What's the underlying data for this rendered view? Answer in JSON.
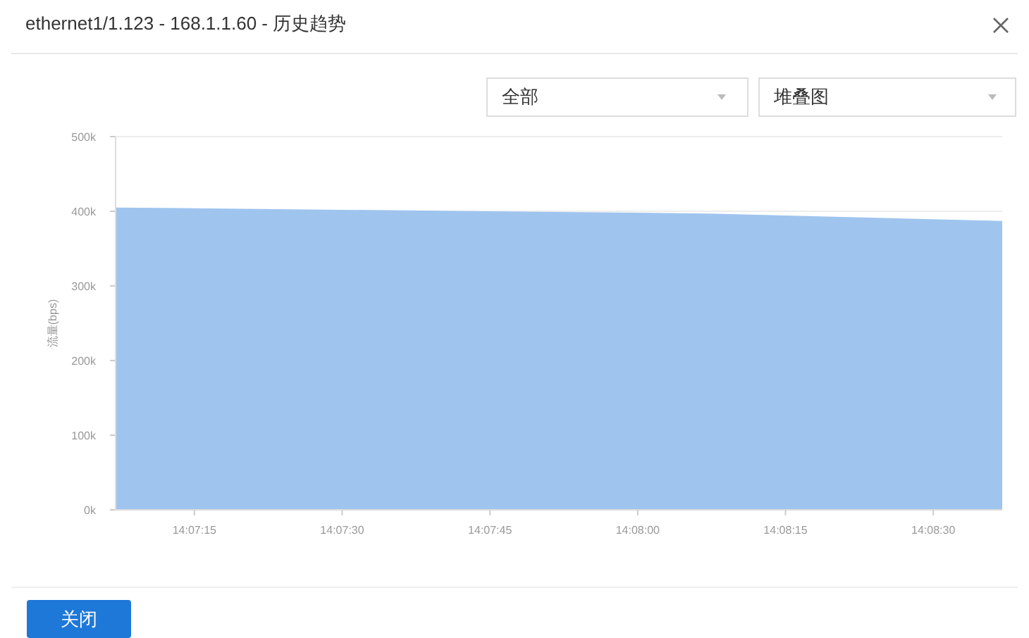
{
  "chart_data": {
    "type": "area",
    "title": "ethernet1/1.123 - 168.1.1.60 - 历史趋势",
    "ylabel": "流量(bps)",
    "annotations": [
      "全部",
      "堆叠图",
      "关闭"
    ],
    "x": [
      14.118611,
      14.125,
      14.133333,
      14.135278,
      14.143611
    ],
    "series": [
      {
        "color": "#9fc5ef",
        "values": [
          405000,
          402000,
          398000,
          397000,
          387000
        ]
      }
    ],
    "xlim": [
      14.118611,
      14.143611
    ],
    "xticks": [
      {
        "value": 14.120833,
        "label": "14:07:15"
      },
      {
        "value": 14.125,
        "label": "14:07:30"
      },
      {
        "value": 14.129167,
        "label": "14:07:45"
      },
      {
        "value": 14.133333,
        "label": "14:08:00"
      },
      {
        "value": 14.1375,
        "label": "14:08:15"
      },
      {
        "value": 14.141667,
        "label": "14:08:30"
      }
    ],
    "ylim": [
      0,
      500000
    ],
    "yticks": [
      {
        "value": 0,
        "label": "0k"
      },
      {
        "value": 100000,
        "label": "100k"
      },
      {
        "value": 200000,
        "label": "200k"
      },
      {
        "value": 300000,
        "label": "300k"
      },
      {
        "value": 400000,
        "label": "400k"
      },
      {
        "value": 500000,
        "label": "500k"
      }
    ],
    "grid": "y"
  }
}
